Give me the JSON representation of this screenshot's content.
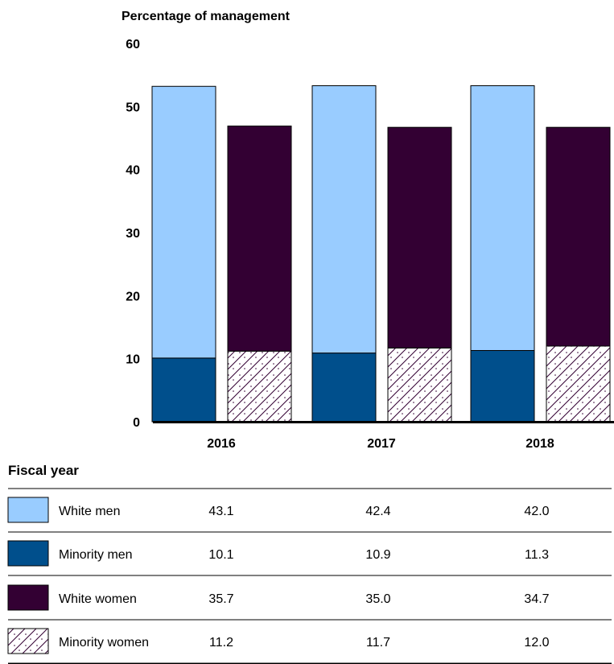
{
  "chart_data": {
    "type": "bar",
    "stacked": true,
    "ylabel": "Percentage of management",
    "xlabel": "Fiscal year",
    "ylim": [
      0,
      60
    ],
    "yticks": [
      0,
      10,
      20,
      30,
      40,
      50,
      60
    ],
    "categories": [
      "2016",
      "2017",
      "2018"
    ],
    "series": [
      {
        "name": "White men",
        "group": "men",
        "values": [
          43.1,
          42.4,
          42.0
        ],
        "color": "#99ccff",
        "pattern": "solid"
      },
      {
        "name": "Minority men",
        "group": "men",
        "values": [
          10.1,
          10.9,
          11.3
        ],
        "color": "#004f8c",
        "pattern": "solid"
      },
      {
        "name": "White women",
        "group": "women",
        "values": [
          35.7,
          35.0,
          34.7
        ],
        "color": "#330033",
        "pattern": "solid"
      },
      {
        "name": "Minority women",
        "group": "women",
        "values": [
          11.2,
          11.7,
          12.0
        ],
        "color": "#330033",
        "pattern": "hatched"
      }
    ],
    "grid": false,
    "legend": "data table below chart"
  }
}
